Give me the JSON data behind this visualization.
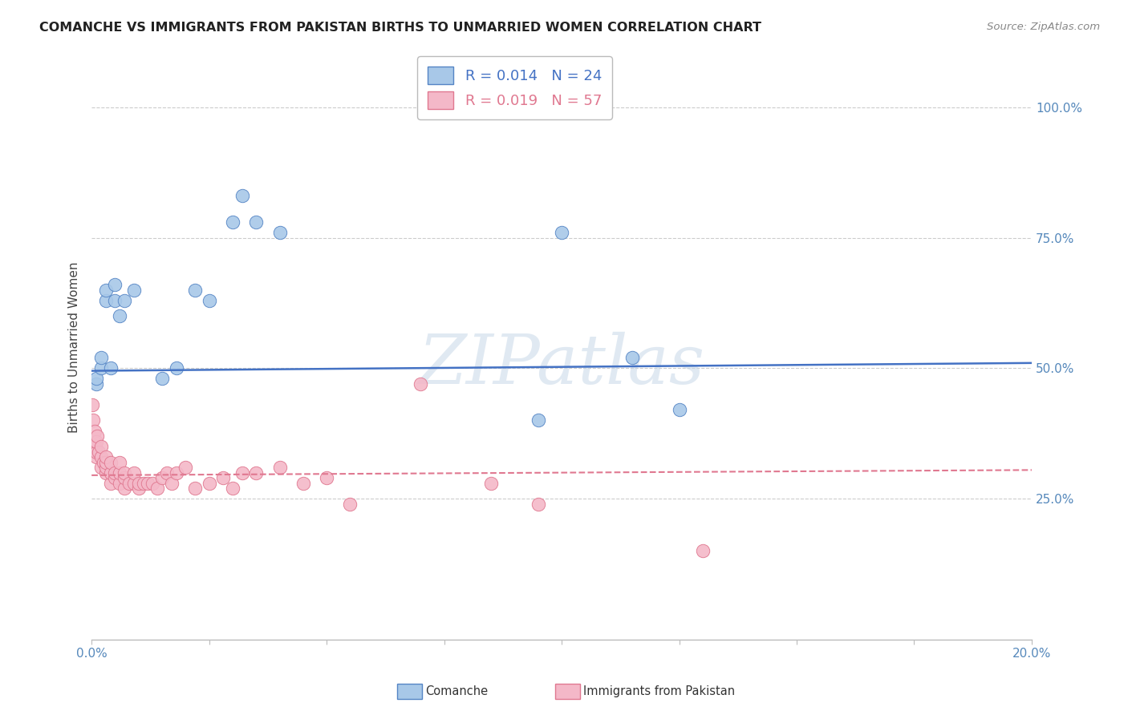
{
  "title": "COMANCHE VS IMMIGRANTS FROM PAKISTAN BIRTHS TO UNMARRIED WOMEN CORRELATION CHART",
  "source": "Source: ZipAtlas.com",
  "ylabel": "Births to Unmarried Women",
  "legend_com": "R = 0.014   N = 24",
  "legend_pak": "R = 0.019   N = 57",
  "comanche_color": "#a8c8e8",
  "pakistan_color": "#f4b8c8",
  "comanche_edge_color": "#5585c5",
  "pakistan_edge_color": "#e07890",
  "comanche_line_color": "#4472c4",
  "pakistan_line_color": "#e07890",
  "comanche_scatter": {
    "x": [
      0.001,
      0.001,
      0.002,
      0.002,
      0.003,
      0.003,
      0.004,
      0.005,
      0.005,
      0.006,
      0.007,
      0.009,
      0.015,
      0.018,
      0.022,
      0.025,
      0.03,
      0.032,
      0.035,
      0.04,
      0.095,
      0.1,
      0.115,
      0.125
    ],
    "y": [
      0.47,
      0.48,
      0.5,
      0.52,
      0.63,
      0.65,
      0.5,
      0.63,
      0.66,
      0.6,
      0.63,
      0.65,
      0.48,
      0.5,
      0.65,
      0.63,
      0.78,
      0.83,
      0.78,
      0.76,
      0.4,
      0.76,
      0.52,
      0.42
    ]
  },
  "pakistan_scatter": {
    "x": [
      0.0002,
      0.0003,
      0.0005,
      0.0006,
      0.0008,
      0.001,
      0.001,
      0.001,
      0.0012,
      0.0015,
      0.002,
      0.002,
      0.002,
      0.0025,
      0.003,
      0.003,
      0.003,
      0.003,
      0.004,
      0.004,
      0.004,
      0.005,
      0.005,
      0.006,
      0.006,
      0.006,
      0.007,
      0.007,
      0.007,
      0.008,
      0.009,
      0.009,
      0.01,
      0.01,
      0.011,
      0.012,
      0.013,
      0.014,
      0.015,
      0.016,
      0.017,
      0.018,
      0.02,
      0.022,
      0.025,
      0.028,
      0.03,
      0.032,
      0.035,
      0.04,
      0.045,
      0.05,
      0.055,
      0.07,
      0.085,
      0.095,
      0.13
    ],
    "y": [
      0.43,
      0.4,
      0.36,
      0.38,
      0.35,
      0.33,
      0.34,
      0.36,
      0.37,
      0.34,
      0.31,
      0.33,
      0.35,
      0.32,
      0.3,
      0.31,
      0.32,
      0.33,
      0.28,
      0.3,
      0.32,
      0.29,
      0.3,
      0.28,
      0.3,
      0.32,
      0.27,
      0.29,
      0.3,
      0.28,
      0.28,
      0.3,
      0.27,
      0.28,
      0.28,
      0.28,
      0.28,
      0.27,
      0.29,
      0.3,
      0.28,
      0.3,
      0.31,
      0.27,
      0.28,
      0.29,
      0.27,
      0.3,
      0.3,
      0.31,
      0.28,
      0.29,
      0.24,
      0.47,
      0.28,
      0.24,
      0.15
    ]
  },
  "comanche_line": {
    "x0": 0.0,
    "x1": 0.2,
    "y0": 0.495,
    "y1": 0.51
  },
  "pakistan_line": {
    "x0": 0.0,
    "x1": 0.2,
    "y0": 0.295,
    "y1": 0.305
  },
  "xlim": [
    0.0,
    0.2
  ],
  "ylim": [
    -0.02,
    1.1
  ],
  "y_axis_min": 0.0,
  "y_axis_max": 1.0,
  "ytick_values": [
    0.25,
    0.5,
    0.75,
    1.0
  ],
  "ytick_labels": [
    "25.0%",
    "50.0%",
    "75.0%",
    "100.0%"
  ],
  "xtick_label_left": "0.0%",
  "xtick_label_right": "20.0%",
  "watermark": "ZIPatlas",
  "background_color": "#ffffff",
  "grid_color": "#cccccc",
  "bottom_legend_com": "Comanche",
  "bottom_legend_pak": "Immigrants from Pakistan"
}
